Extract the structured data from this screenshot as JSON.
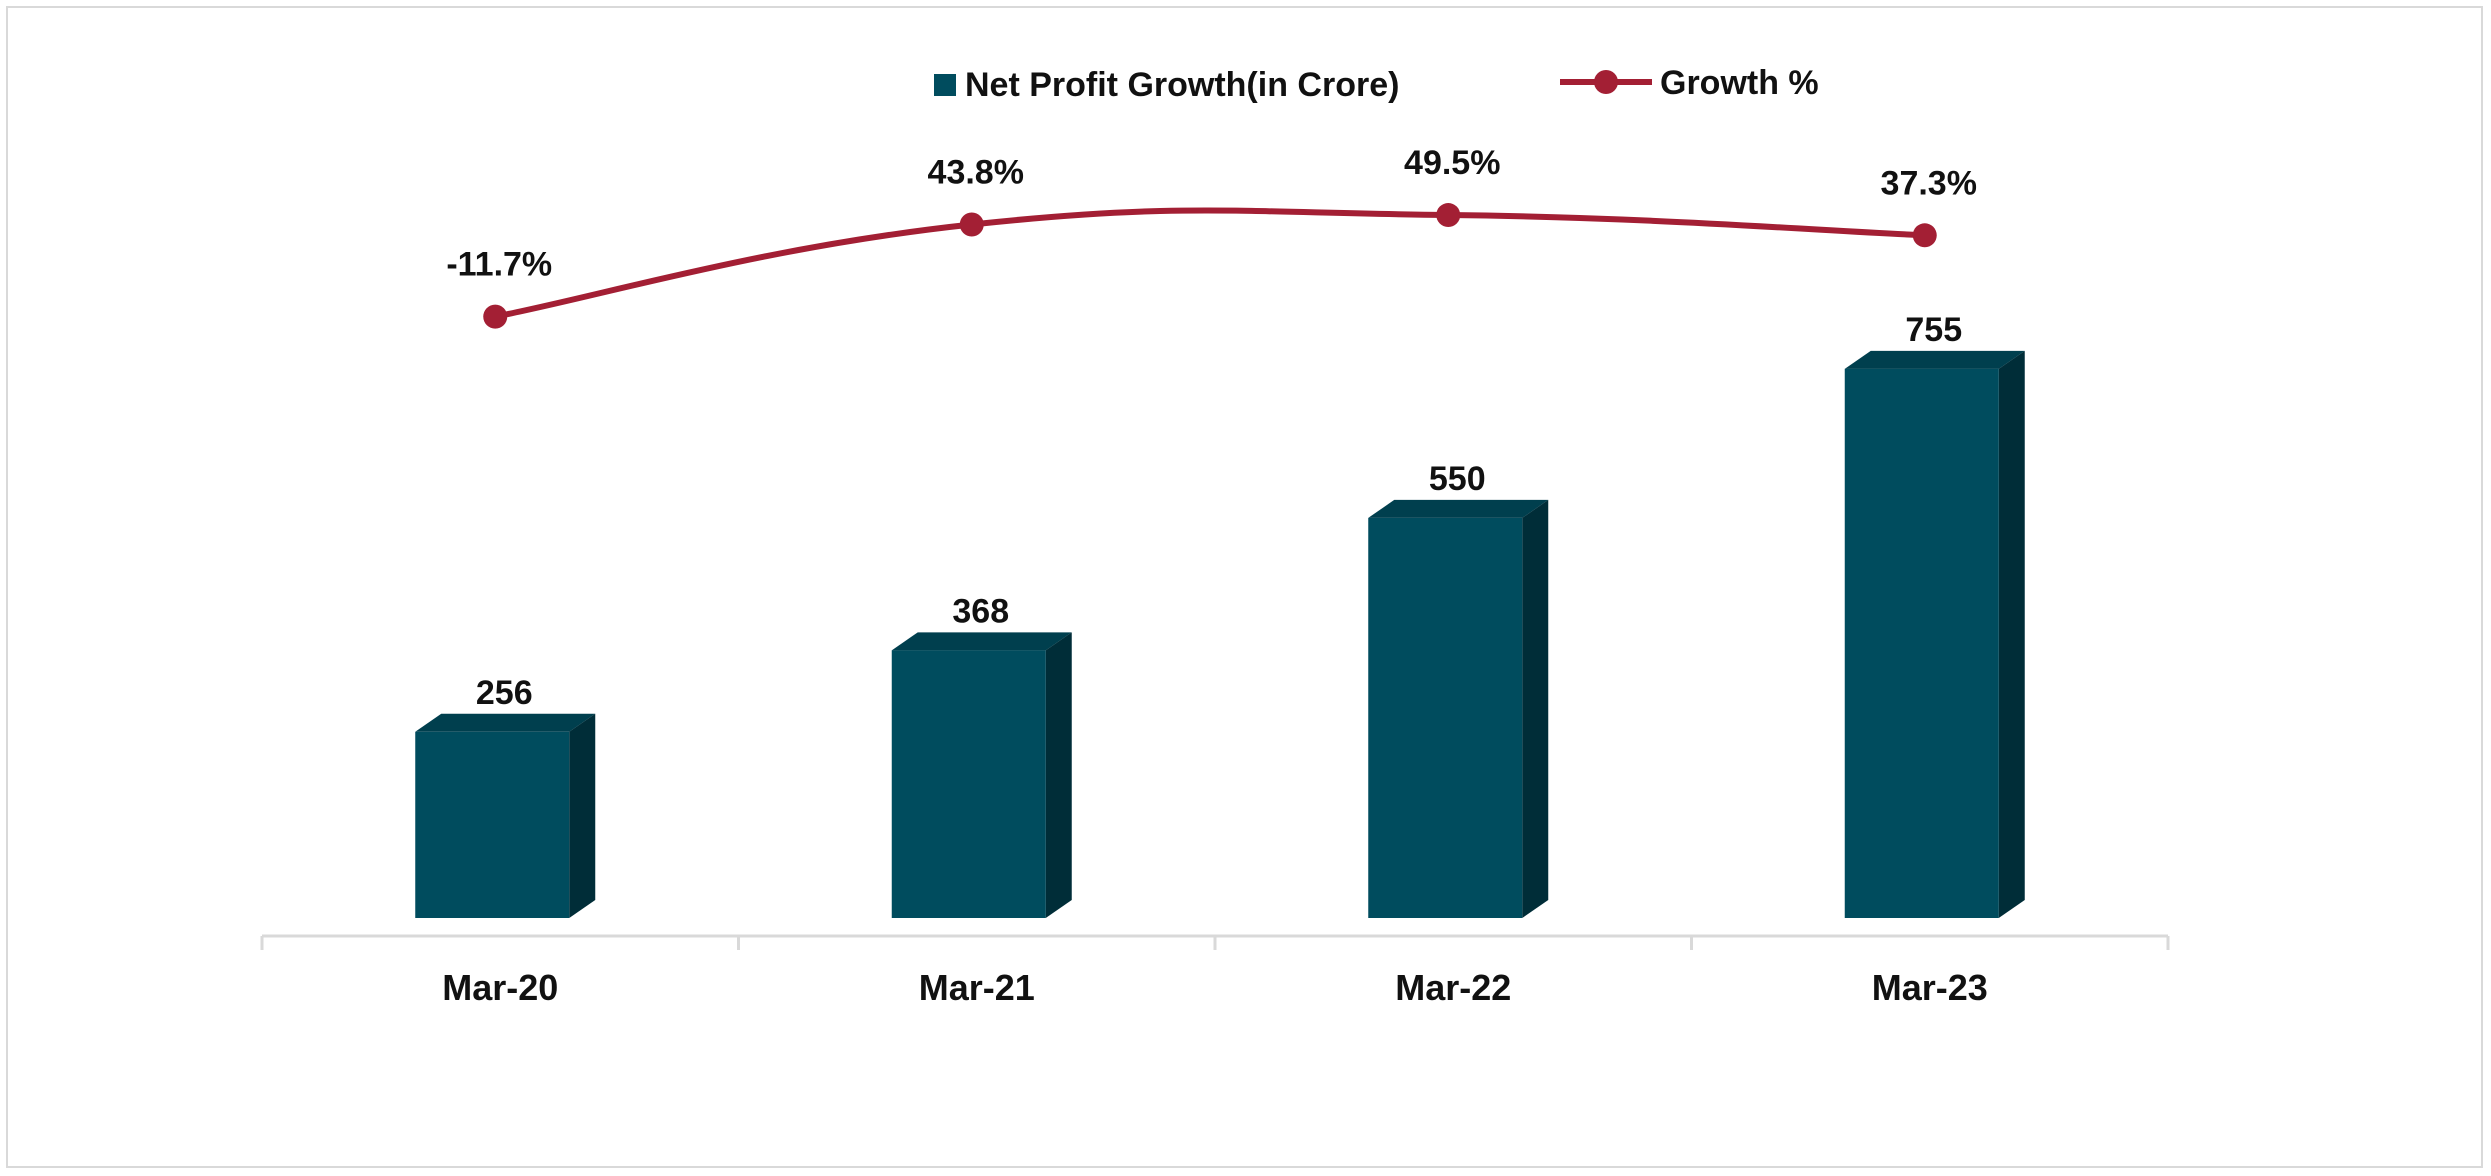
{
  "chart_data": {
    "type": "bar",
    "categories": [
      "Mar-20",
      "Mar-21",
      "Mar-22",
      "Mar-23"
    ],
    "series": [
      {
        "name": "Net Profit Growth(in Crore)",
        "kind": "bar",
        "values": [
          256,
          368,
          550,
          755
        ],
        "labels": [
          "256",
          "368",
          "550",
          "755"
        ]
      },
      {
        "name": "Growth %",
        "kind": "line",
        "values": [
          -11.7,
          43.8,
          49.5,
          37.3
        ],
        "labels": [
          "-11.7%",
          "43.8%",
          "49.5%",
          "37.3%"
        ]
      }
    ],
    "legend_position": "top",
    "grid": false,
    "colors": {
      "bar_front": "#004C5E",
      "bar_top": "#003F4E",
      "bar_side": "#002D38",
      "line": "#A31F34",
      "axis": "#d9d9d9"
    }
  }
}
